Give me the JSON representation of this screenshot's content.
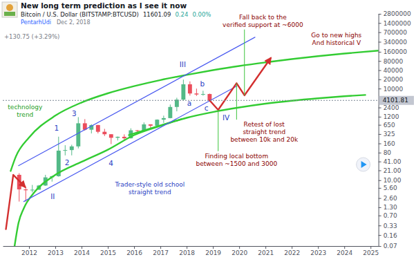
{
  "header": {
    "author": "PentarhUdi",
    "date": "Dec 2, 2018",
    "price": "11601.09",
    "change": "0.24",
    "change_percent": "0.00%",
    "day_change": "+130.75 (+3.29%)"
  },
  "chart_data": {
    "type": "candlestick",
    "title": "New long term prediction as I see it now",
    "subtitle": "Bitcoin / U.S. Dollar (BITSTAMP:BTCUSD)",
    "log": "y",
    "grid": false,
    "xlim": [
      2011,
      2025.3
    ],
    "xticks": [
      2012,
      2013,
      2014,
      2015,
      2016,
      2017,
      2018,
      2019,
      2020,
      2021,
      2022,
      2023,
      2024,
      2025
    ],
    "ylim": [
      0.07,
      2800000
    ],
    "yticks": [
      2800000,
      1400000,
      700000,
      340000,
      160000,
      80000,
      40000,
      20000,
      10000,
      2400,
      1200,
      650,
      325,
      160,
      80,
      {
        "value": 41,
        "label": "41.00"
      },
      {
        "value": 21,
        "label": "21.00"
      },
      {
        "value": 10,
        "label": "10.00"
      },
      {
        "value": 5.6,
        "label": "5.60"
      },
      {
        "value": 2.6,
        "label": "2.60"
      },
      {
        "value": 1.3,
        "label": "1.30"
      },
      {
        "value": 0.7,
        "label": "0.70"
      },
      0.33,
      0.16,
      0.07
    ],
    "last_price": 4101.81,
    "series": [
      {
        "type": "candlestick",
        "x": [
          2011.625,
          2011.875,
          2012.125,
          2012.375,
          2012.625,
          2012.875,
          2013.125,
          2013.375,
          2013.625,
          2013.875,
          2014.125,
          2014.375,
          2014.625,
          2014.875,
          2015.125,
          2015.375,
          2015.625,
          2015.875,
          2016.125,
          2016.375,
          2016.625,
          2016.875,
          2017.125,
          2017.375,
          2017.625,
          2017.875,
          2018.125,
          2018.375,
          2018.625,
          2018.875
        ],
        "open": [
          15,
          5,
          4.7,
          4.9,
          6.7,
          12.4,
          13.5,
          93,
          97,
          128,
          730,
          450,
          640,
          385,
          320,
          245,
          264,
          236,
          430,
          416,
          673,
          608,
          960,
          1080,
          2500,
          4340,
          13800,
          6900,
          6400,
          6630
        ],
        "high": [
          17,
          6,
          7,
          7,
          15,
          14,
          266,
          140,
          145,
          1160,
          1000,
          680,
          650,
          480,
          320,
          270,
          317,
          500,
          440,
          780,
          680,
          980,
          1300,
          3000,
          5000,
          19700,
          17200,
          9990,
          8490,
          6840
        ],
        "low": [
          2,
          2,
          4,
          4.8,
          6.5,
          9,
          13,
          65,
          65,
          110,
          420,
          340,
          340,
          280,
          152,
          200,
          200,
          230,
          350,
          410,
          480,
          590,
          750,
          1060,
          1800,
          4000,
          5900,
          5750,
          5860,
          3700
        ],
        "close": [
          5,
          4.7,
          4.9,
          6.7,
          12.4,
          13.5,
          93,
          97,
          128,
          730,
          450,
          640,
          385,
          320,
          245,
          264,
          236,
          430,
          416,
          673,
          608,
          960,
          1080,
          2500,
          4340,
          13800,
          6900,
          6400,
          6630,
          4100
        ],
        "colors": [
          "#eb4d5c",
          "#eb4d5c",
          "#53b987",
          "#53b987",
          "#53b987",
          "#53b987",
          "#53b987",
          "#53b987",
          "#53b987",
          "#53b987",
          "#eb4d5c",
          "#53b987",
          "#eb4d5c",
          "#eb4d5c",
          "#eb4d5c",
          "#53b987",
          "#eb4d5c",
          "#53b987",
          "#eb4d5c",
          "#53b987",
          "#eb4d5c",
          "#53b987",
          "#53b987",
          "#53b987",
          "#53b987",
          "#53b987",
          "#eb4d5c",
          "#eb4d5c",
          "#53b987",
          "#eb4d5c"
        ]
      },
      {
        "type": "line",
        "color": "#33cc33",
        "line_style": "bold",
        "x": [
          2011.3,
          2011.5,
          2012,
          2013,
          2014,
          2015,
          2016,
          2017,
          2018,
          2019,
          2020,
          2021,
          2022,
          2023,
          2024,
          2025.3
        ],
        "values": [
          20,
          60,
          250,
          1300,
          3500,
          7000,
          12000,
          19000,
          28000,
          40000,
          55000,
          72000,
          92000,
          115000,
          140000,
          175000
        ]
      },
      {
        "type": "line",
        "color": "#33cc33",
        "line_style": "bold",
        "x": [
          2011.45,
          2011.6,
          2011.8,
          2012.2,
          2013,
          2014,
          2015,
          2016,
          2017,
          2018,
          2019,
          2020,
          2021,
          2022,
          2023,
          2024,
          2024.8
        ],
        "values": [
          0.07,
          0.4,
          1.2,
          4,
          15,
          40,
          100,
          300,
          600,
          1100,
          1700,
          2400,
          3200,
          4000,
          4800,
          5600,
          6200
        ]
      },
      {
        "type": "line",
        "color": "#33cc33",
        "line_style": "bold",
        "x": [
          2015.8,
          2017.8
        ],
        "values": [
          300,
          1000
        ]
      },
      {
        "type": "line",
        "color": "#4c5cf0",
        "line_style": "solid",
        "x": [
          2011.6,
          2020.6
        ],
        "values": [
          30,
          480000
        ]
      },
      {
        "type": "line",
        "color": "#4c5cf0",
        "line_style": "solid",
        "x": [
          2011.8,
          2019.9
        ],
        "values": [
          2,
          12000
        ]
      },
      {
        "type": "line",
        "color": "#d32f2f",
        "line_style": "bold",
        "marker": "arrow",
        "x": [
          2018.875,
          2019.2,
          2019.9,
          2020.2,
          2021.2
        ],
        "values": [
          4100,
          2000,
          15000,
          6000,
          100000
        ]
      },
      {
        "type": "line",
        "color": "#d32f2f",
        "line_style": "bold",
        "marker": "arrow",
        "x": [
          2011.12,
          2011.4,
          2011.85
        ],
        "values": [
          0.25,
          15,
          6
        ]
      }
    ],
    "annotations": [
      {
        "text": "Fall back to the\nverified support at ~6000",
        "x": 2020.9,
        "y": 1660000,
        "color": "#8b0000",
        "point": [
          2020.2,
          6000
        ]
      },
      {
        "text": "Go to new highs\nAnd historical V",
        "x": 2023.7,
        "y": 418000,
        "color": "#8b0000"
      },
      {
        "text": "Retest of lost\nstraight trend\nbetween 10k and 20k",
        "x": 2020.95,
        "y": 380,
        "color": "#8b0000",
        "point": [
          2019.9,
          15000
        ]
      },
      {
        "text": "Finding local bottom\nbetween ~1500 and 3000",
        "x": 2019.9,
        "y": 47,
        "color": "#8b0000",
        "point": [
          2019.2,
          2000
        ]
      },
      {
        "text": "technology\ntrend",
        "x": 2011.85,
        "y": 1850,
        "color": "#1e9e1e"
      },
      {
        "text": "Trader-style old school\nstraight trend",
        "x": 2016.6,
        "y": 5.4,
        "color": "#2b3fc4"
      },
      {
        "text": "1",
        "x": 2013.05,
        "y": 500,
        "color": "#2b3fc4"
      },
      {
        "text": "2",
        "x": 2013.45,
        "y": 38,
        "color": "#2b3fc4"
      },
      {
        "text": "3",
        "x": 2013.72,
        "y": 1500,
        "color": "#2b3fc4"
      },
      {
        "text": "4",
        "x": 2015.12,
        "y": 35,
        "color": "#2b3fc4"
      },
      {
        "text": "II",
        "x": 2012.9,
        "y": 3,
        "color": "#2b3fc4"
      },
      {
        "text": "III",
        "x": 2017.85,
        "y": 60000,
        "color": "#2b3fc4"
      },
      {
        "text": "a",
        "x": 2018.1,
        "y": 3300,
        "color": "#2b3fc4"
      },
      {
        "text": "b",
        "x": 2018.6,
        "y": 14000,
        "color": "#2b3fc4"
      },
      {
        "text": "c",
        "x": 2018.75,
        "y": 2300,
        "color": "#2b3fc4"
      },
      {
        "text": "IV",
        "x": 2019.5,
        "y": 1135,
        "color": "#2b3fc4"
      }
    ]
  }
}
